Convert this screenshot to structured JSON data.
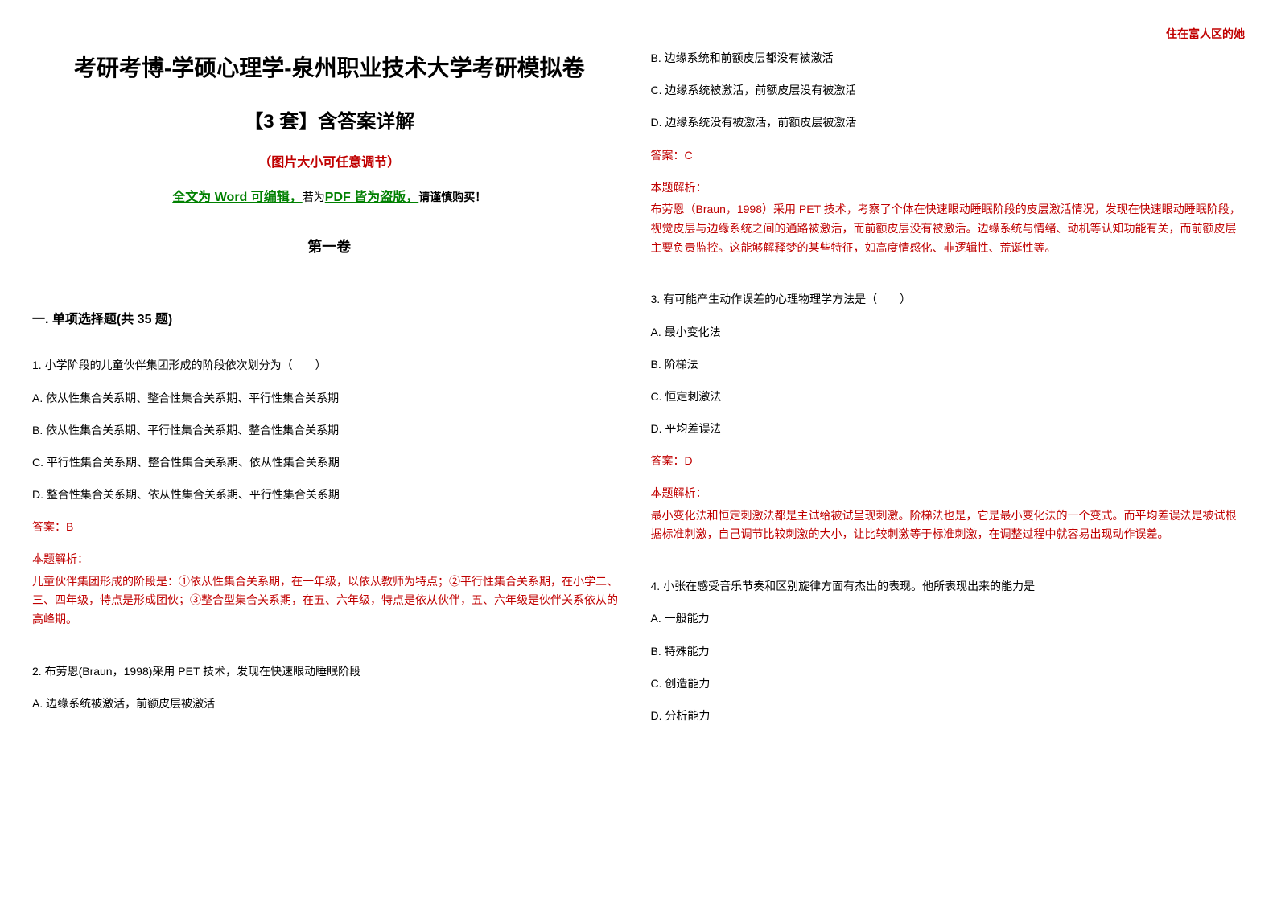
{
  "header_tag": "住在富人区的她",
  "title_main": "考研考博-学硕心理学-泉州职业技术大学考研模拟卷",
  "title_sub": "【3 套】含答案详解",
  "title_note": "（图片大小可任意调节）",
  "edit_note": {
    "part1": "全文为 Word 可编辑，",
    "part2": "若为",
    "part3": "PDF 皆为盗版，",
    "part4": "请谨慎购买！"
  },
  "volume_title": "第一卷",
  "section_title": "一. 单项选择题(共 35 题)",
  "questions": [
    {
      "number": "1.",
      "text": "小学阶段的儿童伙伴集团形成的阶段依次划分为（　　）",
      "options": [
        "A. 依从性集合关系期、整合性集合关系期、平行性集合关系期",
        "B. 依从性集合关系期、平行性集合关系期、整合性集合关系期",
        "C. 平行性集合关系期、整合性集合关系期、依从性集合关系期",
        "D. 整合性集合关系期、依从性集合关系期、平行性集合关系期"
      ],
      "answer": "答案：B",
      "analysis_label": "本题解析：",
      "analysis_text": "儿童伙伴集团形成的阶段是：①依从性集合关系期，在一年级，以依从教师为特点；②平行性集合关系期，在小学二、三、四年级，特点是形成团伙；③整合型集合关系期，在五、六年级，特点是依从伙伴，五、六年级是伙伴关系依从的高峰期。"
    },
    {
      "number": "2.",
      "text": "布劳恩(Braun，1998)采用 PET 技术，发现在快速眼动睡眠阶段",
      "options_partial": [
        "A. 边缘系统被激活，前额皮层被激活"
      ],
      "options_col2": [
        "B. 边缘系统和前额皮层都没有被激活",
        "C. 边缘系统被激活，前额皮层没有被激活",
        "D. 边缘系统没有被激活，前额皮层被激活"
      ],
      "answer": "答案：C",
      "analysis_label": "本题解析：",
      "analysis_text": "布劳恩（Braun，1998）采用 PET 技术，考察了个体在快速眼动睡眠阶段的皮层激活情况，发现在快速眼动睡眠阶段，视觉皮层与边缘系统之间的通路被激活，而前额皮层没有被激活。边缘系统与情绪、动机等认知功能有关，而前额皮层主要负责监控。这能够解释梦的某些特征，如高度情感化、非逻辑性、荒诞性等。"
    },
    {
      "number": "3.",
      "text": "有可能产生动作误差的心理物理学方法是（　　）",
      "options": [
        "A. 最小变化法",
        "B. 阶梯法",
        "C. 恒定刺激法",
        "D. 平均差误法"
      ],
      "answer": "答案：D",
      "analysis_label": "本题解析：",
      "analysis_text": "最小变化法和恒定刺激法都是主试给被试呈现刺激。阶梯法也是，它是最小变化法的一个变式。而平均差误法是被试根据标准刺激，自己调节比较刺激的大小，让比较刺激等于标准刺激，在调整过程中就容易出现动作误差。"
    },
    {
      "number": "4.",
      "text": "小张在感受音乐节奏和区别旋律方面有杰出的表现。他所表现出来的能力是",
      "options": [
        "A. 一般能力",
        "B. 特殊能力",
        "C. 创造能力",
        "D. 分析能力"
      ]
    }
  ],
  "colors": {
    "red": "#c00000",
    "green": "#008000",
    "black": "#000000"
  }
}
